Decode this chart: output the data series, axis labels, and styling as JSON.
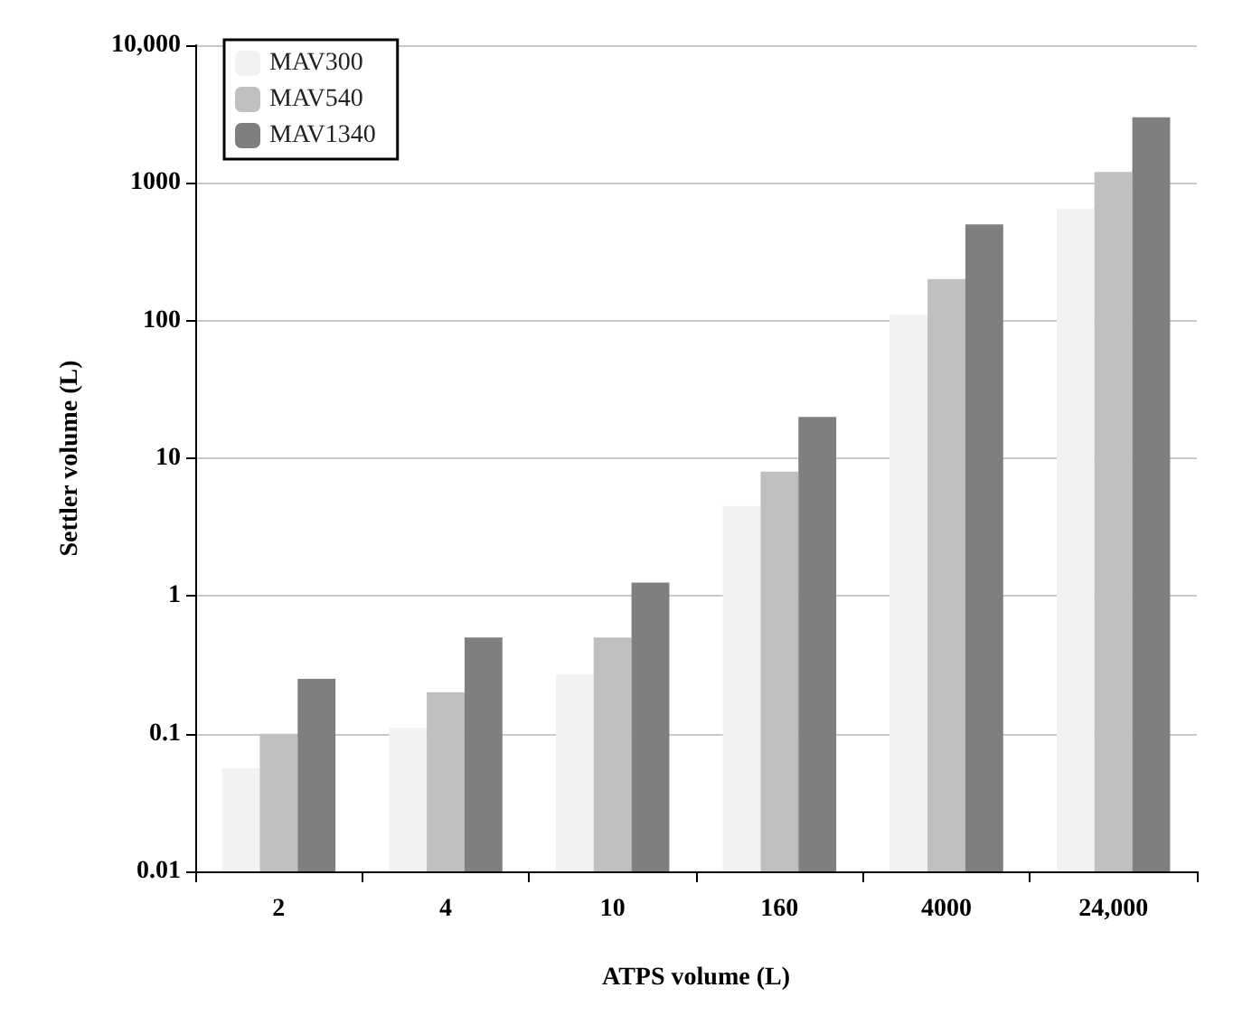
{
  "chart_data": {
    "type": "bar",
    "xlabel": "ATPS volume (L)",
    "ylabel": "Settler volume (L)",
    "categories": [
      "2",
      "4",
      "10",
      "160",
      "4000",
      "24,000"
    ],
    "series": [
      {
        "name": "MAV300",
        "color": "#f2f2f2",
        "values": [
          0.056,
          0.11,
          0.27,
          4.5,
          110,
          650
        ]
      },
      {
        "name": "MAV540",
        "color": "#bfbfbf",
        "values": [
          0.1,
          0.2,
          0.5,
          8,
          200,
          1200
        ]
      },
      {
        "name": "MAV1340",
        "color": "#7f7f7f",
        "values": [
          0.25,
          0.5,
          1.25,
          20,
          500,
          3000
        ]
      }
    ],
    "log": true,
    "ylim": [
      0.01,
      10000
    ],
    "yticks": [
      0.01,
      0.1,
      1,
      10,
      100,
      1000,
      {
        "value": 10000,
        "label": "10,000"
      }
    ],
    "grid": "y",
    "legend": "top left"
  }
}
